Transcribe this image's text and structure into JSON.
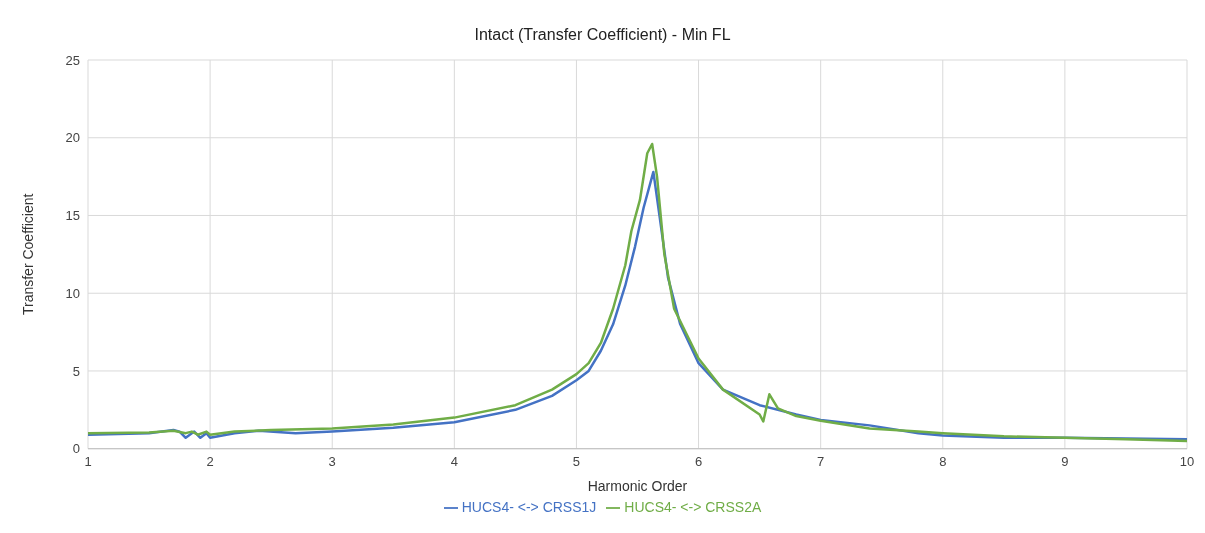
{
  "chart_data": {
    "type": "line",
    "title": "Intact (Transfer Coefficient)  - Min FL",
    "xlabel": "Harmonic Order",
    "ylabel": "Transfer Coefficient",
    "xlim": [
      1,
      10
    ],
    "xticks": [
      1,
      2,
      3,
      4,
      5,
      6,
      7,
      8,
      9,
      10
    ],
    "ylim": [
      0,
      25
    ],
    "yticks": [
      0,
      5,
      10,
      15,
      20,
      25
    ],
    "grid": true,
    "legend": "bottom",
    "marker": "none",
    "line_style": "solid",
    "series": [
      {
        "name": "HUCS4- <-> CRSS1J",
        "color": "#4472c4",
        "x": [
          1.0,
          1.5,
          1.7,
          1.75,
          1.8,
          1.87,
          1.92,
          1.97,
          2.0,
          2.2,
          2.4,
          2.7,
          3.0,
          3.5,
          4.0,
          4.5,
          4.8,
          5.0,
          5.1,
          5.2,
          5.3,
          5.4,
          5.48,
          5.55,
          5.63,
          5.68,
          5.75,
          5.85,
          6.0,
          6.2,
          6.5,
          6.8,
          7.0,
          7.4,
          7.8,
          8.0,
          8.5,
          9.0,
          9.5,
          10.0
        ],
        "values": [
          0.9,
          1.0,
          1.2,
          1.1,
          0.7,
          1.1,
          0.7,
          1.0,
          0.7,
          1.0,
          1.15,
          1.0,
          1.1,
          1.35,
          1.7,
          2.5,
          3.4,
          4.4,
          5.0,
          6.3,
          8.0,
          10.5,
          13.0,
          15.5,
          17.8,
          15,
          11,
          8,
          5.5,
          3.8,
          2.8,
          2.2,
          1.85,
          1.5,
          1.0,
          0.85,
          0.7,
          0.7,
          0.65,
          0.6
        ]
      },
      {
        "name": "HUCS4- <-> CRSS2A",
        "color": "#70ad47",
        "x": [
          1.0,
          1.5,
          1.7,
          1.8,
          1.85,
          1.9,
          1.97,
          2.0,
          2.2,
          2.5,
          3.0,
          3.5,
          4.0,
          4.5,
          4.8,
          5.0,
          5.1,
          5.2,
          5.3,
          5.4,
          5.45,
          5.52,
          5.58,
          5.62,
          5.66,
          5.72,
          5.8,
          6.0,
          6.2,
          6.5,
          6.53,
          6.58,
          6.65,
          6.8,
          7.0,
          7.4,
          7.8,
          8.0,
          8.5,
          9.0,
          9.5,
          10.0
        ],
        "values": [
          1.0,
          1.05,
          1.15,
          1.0,
          1.1,
          0.9,
          1.1,
          0.9,
          1.1,
          1.2,
          1.3,
          1.55,
          2.0,
          2.8,
          3.8,
          4.8,
          5.5,
          6.8,
          9.0,
          11.8,
          14,
          16,
          19.0,
          19.6,
          17.5,
          12.5,
          9,
          5.8,
          3.8,
          2.2,
          1.75,
          3.5,
          2.6,
          2.1,
          1.8,
          1.3,
          1.1,
          1.0,
          0.8,
          0.7,
          0.6,
          0.5
        ]
      }
    ]
  }
}
